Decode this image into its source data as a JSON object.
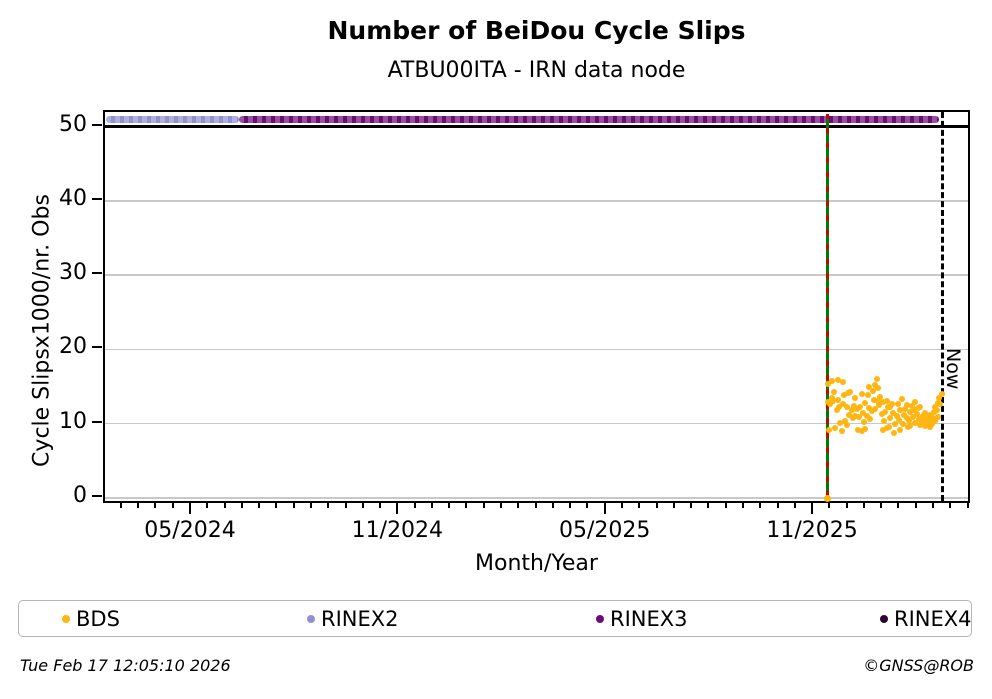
{
  "title": "Number of BeiDou Cycle Slips",
  "subtitle": "ATBU00ITA - IRN data node",
  "footer": {
    "timestamp": "Tue Feb 17 12:05:10 2026",
    "credit": "©GNSS@ROB"
  },
  "legend": {
    "position": "bottom",
    "entries": [
      {
        "label": "BDS",
        "color": "#FFB612",
        "x": 43
      },
      {
        "label": "RINEX2",
        "color": "#9191D1",
        "x": 288
      },
      {
        "label": "RINEX3",
        "color": "#6E0C77",
        "x": 577
      },
      {
        "label": "RINEX4",
        "color": "#29072E",
        "x": 861
      }
    ]
  },
  "chart_data": {
    "type": "scatter",
    "title": "Number of BeiDou Cycle Slips",
    "subtitle": "ATBU00ITA - IRN data node",
    "xlabel": "Month/Year",
    "ylabel": "Cycle Slipsx1000/nr. Obs",
    "x_tick_labels": [
      "05/2024",
      "11/2024",
      "05/2025",
      "11/2025"
    ],
    "y_ticks": [
      0,
      10,
      20,
      30,
      40,
      50
    ],
    "ylim": [
      -1,
      52
    ],
    "xlim_months_rel_052024": [
      -2.52,
      22.57
    ],
    "grid": true,
    "cap_line_y": 50,
    "now_label": "Now",
    "now_line_month": 21.73,
    "event_line": {
      "month": 18.4,
      "color": "#007d00",
      "dash_color": "#cf0000"
    },
    "availability_series": [
      {
        "name": "RINEX2",
        "level": 51,
        "start_month": -2.49,
        "end_month": 1.36,
        "color": "#9191D1"
      },
      {
        "name": "RINEX3",
        "level": 51,
        "start_month": 1.36,
        "end_month": 21.62,
        "color": "#6E0C77"
      }
    ],
    "bds_zero_point": {
      "day": 0,
      "value": 0
    },
    "bds_points_day_value": [
      [
        0,
        12.9
      ],
      [
        0,
        15.3
      ],
      [
        1,
        9.1
      ],
      [
        2,
        12.6
      ],
      [
        3,
        15.8
      ],
      [
        3,
        13.5
      ],
      [
        4,
        13.1
      ],
      [
        5,
        14.3
      ],
      [
        6,
        9.4
      ],
      [
        7,
        11.8
      ],
      [
        8,
        15.9
      ],
      [
        8,
        13.2
      ],
      [
        9,
        12.2
      ],
      [
        10,
        10.1
      ],
      [
        11,
        9.0
      ],
      [
        12,
        12.7
      ],
      [
        12,
        15.6
      ],
      [
        13,
        13.9
      ],
      [
        14,
        10.3
      ],
      [
        15,
        9.8
      ],
      [
        15,
        12.2
      ],
      [
        16,
        14.1
      ],
      [
        17,
        11.2
      ],
      [
        18,
        14.2
      ],
      [
        19,
        11.9
      ],
      [
        20,
        10.8
      ],
      [
        21,
        12.4
      ],
      [
        22,
        11.1
      ],
      [
        22,
        13.4
      ],
      [
        23,
        12.0
      ],
      [
        24,
        9.2
      ],
      [
        25,
        10.9
      ],
      [
        26,
        12.3
      ],
      [
        27,
        14.0
      ],
      [
        27,
        9.0
      ],
      [
        28,
        11.5
      ],
      [
        29,
        10.2
      ],
      [
        30,
        12.8
      ],
      [
        30,
        9.3
      ],
      [
        31,
        11.0
      ],
      [
        32,
        13.8
      ],
      [
        33,
        12.1
      ],
      [
        33,
        15.0
      ],
      [
        34,
        10.6
      ],
      [
        35,
        11.7
      ],
      [
        36,
        14.4
      ],
      [
        37,
        13.2
      ],
      [
        38,
        15.2
      ],
      [
        38,
        12.0
      ],
      [
        39,
        16.0
      ],
      [
        40,
        14.8
      ],
      [
        40,
        13.0
      ],
      [
        41,
        12.5
      ],
      [
        42,
        13.6
      ],
      [
        43,
        11.3
      ],
      [
        44,
        12.9
      ],
      [
        44,
        9.1
      ],
      [
        45,
        10.4
      ],
      [
        46,
        11.6
      ],
      [
        47,
        13.0
      ],
      [
        47,
        9.4
      ],
      [
        48,
        12.2
      ],
      [
        49,
        9.6
      ],
      [
        50,
        10.7
      ],
      [
        50,
        12.3
      ],
      [
        51,
        12.6
      ],
      [
        52,
        11.4
      ],
      [
        53,
        8.8
      ],
      [
        54,
        9.9
      ],
      [
        55,
        11.1
      ],
      [
        56,
        12.7
      ],
      [
        57,
        10.5
      ],
      [
        58,
        11.9
      ],
      [
        58,
        9.2
      ],
      [
        59,
        13.3
      ],
      [
        60,
        10.0
      ],
      [
        61,
        11.2
      ],
      [
        62,
        12.0
      ],
      [
        63,
        10.8
      ],
      [
        63,
        12.5
      ],
      [
        64,
        9.5
      ],
      [
        65,
        10.3
      ],
      [
        66,
        11.6
      ],
      [
        66,
        9.7
      ],
      [
        67,
        12.4
      ],
      [
        68,
        10.9
      ],
      [
        69,
        11.8
      ],
      [
        70,
        10.1
      ],
      [
        70,
        12.9
      ],
      [
        71,
        11.3
      ],
      [
        72,
        12.1
      ],
      [
        73,
        10.6
      ],
      [
        74,
        9.8
      ],
      [
        74,
        12.2
      ],
      [
        75,
        10.4
      ],
      [
        76,
        11.0
      ],
      [
        77,
        10.2
      ],
      [
        78,
        11.5
      ],
      [
        78,
        9.7
      ],
      [
        79,
        10.7
      ],
      [
        80,
        9.9
      ],
      [
        81,
        10.5
      ],
      [
        82,
        11.2
      ],
      [
        82,
        9.6
      ],
      [
        83,
        10.0
      ],
      [
        84,
        10.8
      ],
      [
        85,
        11.6
      ],
      [
        86,
        12.3
      ],
      [
        86,
        10.4
      ],
      [
        87,
        11.9
      ],
      [
        88,
        12.8
      ],
      [
        88,
        10.9
      ],
      [
        89,
        13.5
      ],
      [
        90,
        12.6
      ],
      [
        91,
        14.0
      ]
    ],
    "point_color": "#FFB612"
  }
}
